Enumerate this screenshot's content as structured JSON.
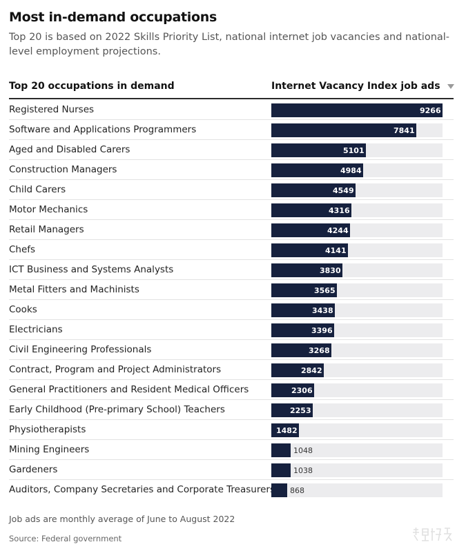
{
  "header": {
    "title": "Most in-demand occupations",
    "subtitle": "Top 20 is based on 2022 Skills Priority List, national internet job vacancies and national-level employment projections."
  },
  "table": {
    "left_header": "Top 20 occupations in demand",
    "right_header": "Internet Vacancy Index job ads",
    "sort_icon": "triangle-down-icon"
  },
  "chart_data": {
    "type": "bar",
    "orientation": "horizontal",
    "categories": [
      "Registered Nurses",
      "Software and Applications Programmers",
      "Aged and Disabled Carers",
      "Construction Managers",
      "Child Carers",
      "Motor Mechanics",
      "Retail Managers",
      "Chefs",
      "ICT Business and Systems Analysts",
      "Metal Fitters and Machinists",
      "Cooks",
      "Electricians",
      "Civil Engineering Professionals",
      "Contract, Program and Project Administrators",
      "General Practitioners and Resident Medical Officers",
      "Early Childhood (Pre-primary School) Teachers",
      "Physiotherapists",
      "Mining Engineers",
      "Gardeners",
      "Auditors, Company Secretaries and Corporate Treasurers"
    ],
    "values": [
      9266,
      7841,
      5101,
      4984,
      4549,
      4316,
      4244,
      4141,
      3830,
      3565,
      3438,
      3396,
      3268,
      2842,
      2306,
      2253,
      1482,
      1048,
      1038,
      868
    ],
    "xlim": [
      0,
      9266
    ],
    "bar_color": "#16213e",
    "track_color": "#ececee"
  },
  "footer": {
    "note": "Job ads are monthly average of June to August 2022",
    "source": "Source: Federal government"
  }
}
